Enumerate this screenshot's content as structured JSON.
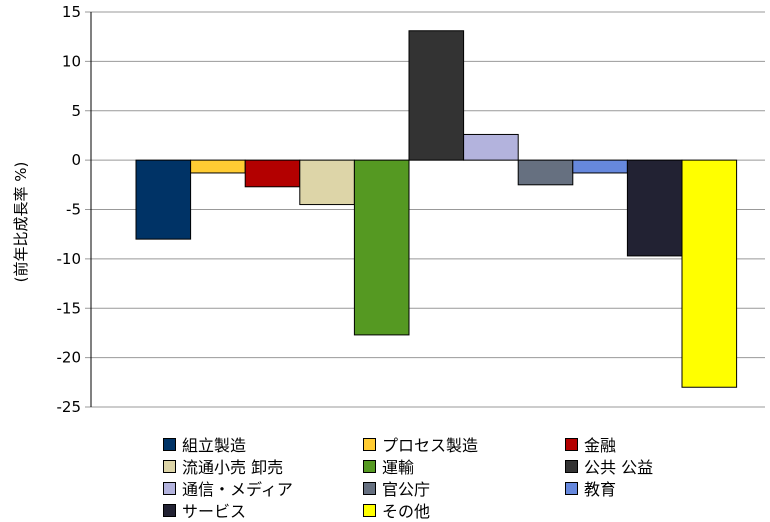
{
  "chart_data": {
    "type": "bar",
    "ylabel": "(前年比成長率 %)",
    "ylim": [
      -25,
      15
    ],
    "yticks": [
      15,
      10,
      5,
      0,
      -5,
      -10,
      -15,
      -20,
      -25
    ],
    "grid": true,
    "legend_position": "bottom",
    "series": [
      {
        "name": "組立製造",
        "value": -8.0,
        "color": "#003366"
      },
      {
        "name": "プロセス製造",
        "value": -1.3,
        "color": "#ffcc33"
      },
      {
        "name": "金融",
        "value": -2.7,
        "color": "#b30000"
      },
      {
        "name": "流通小売 卸売",
        "value": -4.5,
        "color": "#ddd5a8"
      },
      {
        "name": "運輸",
        "value": -17.7,
        "color": "#559922"
      },
      {
        "name": "公共 公益",
        "value": 13.1,
        "color": "#333333"
      },
      {
        "name": "通信・メディア",
        "value": 2.6,
        "color": "#b3b3dd"
      },
      {
        "name": "官公庁",
        "value": -2.5,
        "color": "#667080"
      },
      {
        "name": "教育",
        "value": -1.3,
        "color": "#6688dd"
      },
      {
        "name": "サービス",
        "value": -9.7,
        "color": "#222233"
      },
      {
        "name": "その他",
        "value": -23.0,
        "color": "#ffff00"
      }
    ]
  }
}
